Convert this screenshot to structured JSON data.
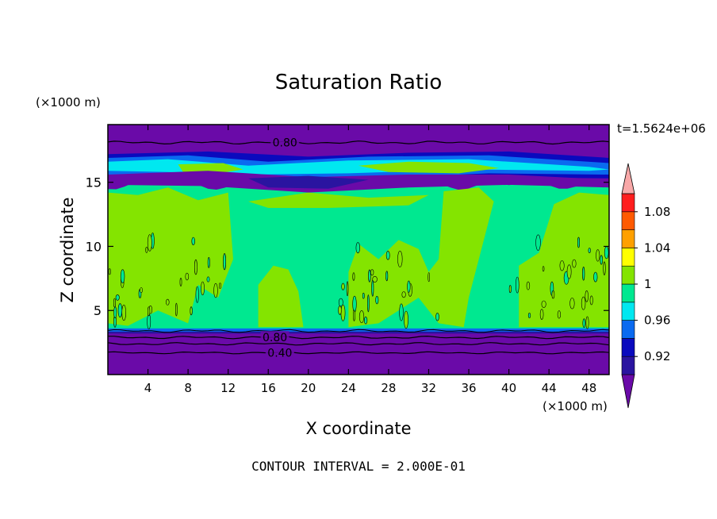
{
  "chart_data": {
    "type": "heatmap",
    "title": "Saturation Ratio",
    "xlabel": "X coordinate",
    "ylabel": "Z coordinate",
    "x_unit": "(×1000 m)",
    "y_unit": "(×1000 m)",
    "time_label": "t=1.5624e+06",
    "footer": "CONTOUR INTERVAL = 2.000E-01",
    "xlim": [
      0,
      50
    ],
    "ylim": [
      0,
      19.5
    ],
    "x_ticks": [
      4,
      8,
      12,
      16,
      20,
      24,
      28,
      32,
      36,
      40,
      44,
      48
    ],
    "y_ticks": [
      5,
      10,
      15
    ],
    "contour_labels": [
      {
        "text": "0.80",
        "x": 17.5,
        "z": 18.1
      },
      {
        "text": "0.80",
        "x": 16.5,
        "z": 2.9
      },
      {
        "text": "0.40",
        "x": 17.0,
        "z": 1.7
      }
    ],
    "colorbar": {
      "colors": [
        "#6a0aa8",
        "#2a14a0",
        "#0a0abe",
        "#0a6af0",
        "#00e8f0",
        "#00e890",
        "#84e400",
        "#ffff00",
        "#ffa000",
        "#ff5a00",
        "#ff1e1e",
        "#f8a8a8"
      ],
      "labels": [
        "0.92",
        "0.96",
        "1",
        "1.04",
        "1.08"
      ]
    },
    "layers": [
      {
        "z": [
          0,
          3.2
        ],
        "value": "< 0.92"
      },
      {
        "z": [
          3.2,
          3.5
        ],
        "value": "0.96"
      },
      {
        "z": [
          3.5,
          14.5
        ],
        "value": "0.98 – 1.02"
      },
      {
        "z": [
          14.5,
          17.5
        ],
        "value": "0.92 – 1.0"
      },
      {
        "z": [
          17.5,
          19.5
        ],
        "value": "0.80"
      }
    ]
  }
}
